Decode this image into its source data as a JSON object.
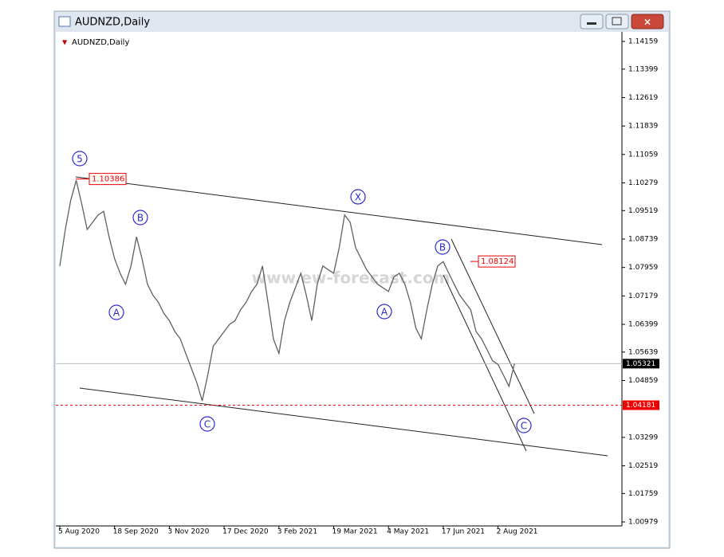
{
  "window": {
    "title": "AUDNZD,Daily"
  },
  "chart_data": {
    "type": "line",
    "title": "AUDNZD,Daily",
    "categories": [
      "5 Aug 2020",
      null,
      null,
      null,
      null,
      null,
      null,
      null,
      null,
      null,
      "18 Sep 2020",
      null,
      null,
      null,
      null,
      null,
      null,
      null,
      null,
      null,
      "3 Nov 2020",
      null,
      null,
      null,
      null,
      null,
      null,
      null,
      null,
      null,
      "17 Dec 2020",
      null,
      null,
      null,
      null,
      null,
      null,
      null,
      null,
      null,
      "3 Feb 2021",
      null,
      null,
      null,
      null,
      null,
      null,
      null,
      null,
      null,
      "19 Mar 2021",
      null,
      null,
      null,
      null,
      null,
      null,
      null,
      null,
      null,
      "4 May 2021",
      null,
      null,
      null,
      null,
      null,
      null,
      null,
      null,
      null,
      "17 Jun 2021",
      null,
      null,
      null,
      null,
      null,
      null,
      null,
      null,
      null,
      "2 Aug 2021",
      null,
      null,
      null
    ],
    "values": [
      1.08,
      1.09,
      1.098,
      1.1035,
      1.097,
      1.09,
      1.092,
      1.094,
      1.095,
      1.088,
      1.082,
      1.078,
      1.075,
      1.08,
      1.088,
      1.082,
      1.075,
      1.072,
      1.07,
      1.067,
      1.065,
      1.062,
      1.06,
      1.056,
      1.052,
      1.048,
      1.043,
      1.05,
      1.058,
      1.06,
      1.062,
      1.064,
      1.065,
      1.068,
      1.07,
      1.073,
      1.075,
      1.08,
      1.07,
      1.06,
      1.056,
      1.065,
      1.07,
      1.074,
      1.078,
      1.072,
      1.065,
      1.075,
      1.08,
      1.079,
      1.078,
      1.085,
      1.094,
      1.092,
      1.085,
      1.082,
      1.079,
      1.077,
      1.075,
      1.074,
      1.073,
      1.077,
      1.078,
      1.075,
      1.07,
      1.063,
      1.06,
      1.068,
      1.075,
      1.08,
      1.0812,
      1.078,
      1.075,
      1.072,
      1.07,
      1.068,
      1.062,
      1.06,
      1.057,
      1.054,
      1.053,
      1.05,
      1.047,
      1.0532
    ],
    "color": "#606060",
    "ylim": [
      1.0087,
      1.14334
    ],
    "yticks": [
      1.14159,
      1.13399,
      1.12619,
      1.11839,
      1.11059,
      1.10279,
      1.09519,
      1.08739,
      1.07959,
      1.07179,
      1.06399,
      1.05639,
      1.04859,
      1.03299,
      1.02519,
      1.01759,
      1.00979
    ],
    "price_markers": [
      1.10386,
      1.08124
    ],
    "current_price": 1.05321,
    "alert_price": 1.04181,
    "wave_labels": [
      "5",
      "B",
      "A",
      "C",
      "X",
      "A",
      "B",
      "C"
    ],
    "watermark": "www.ew-forecast.com"
  }
}
